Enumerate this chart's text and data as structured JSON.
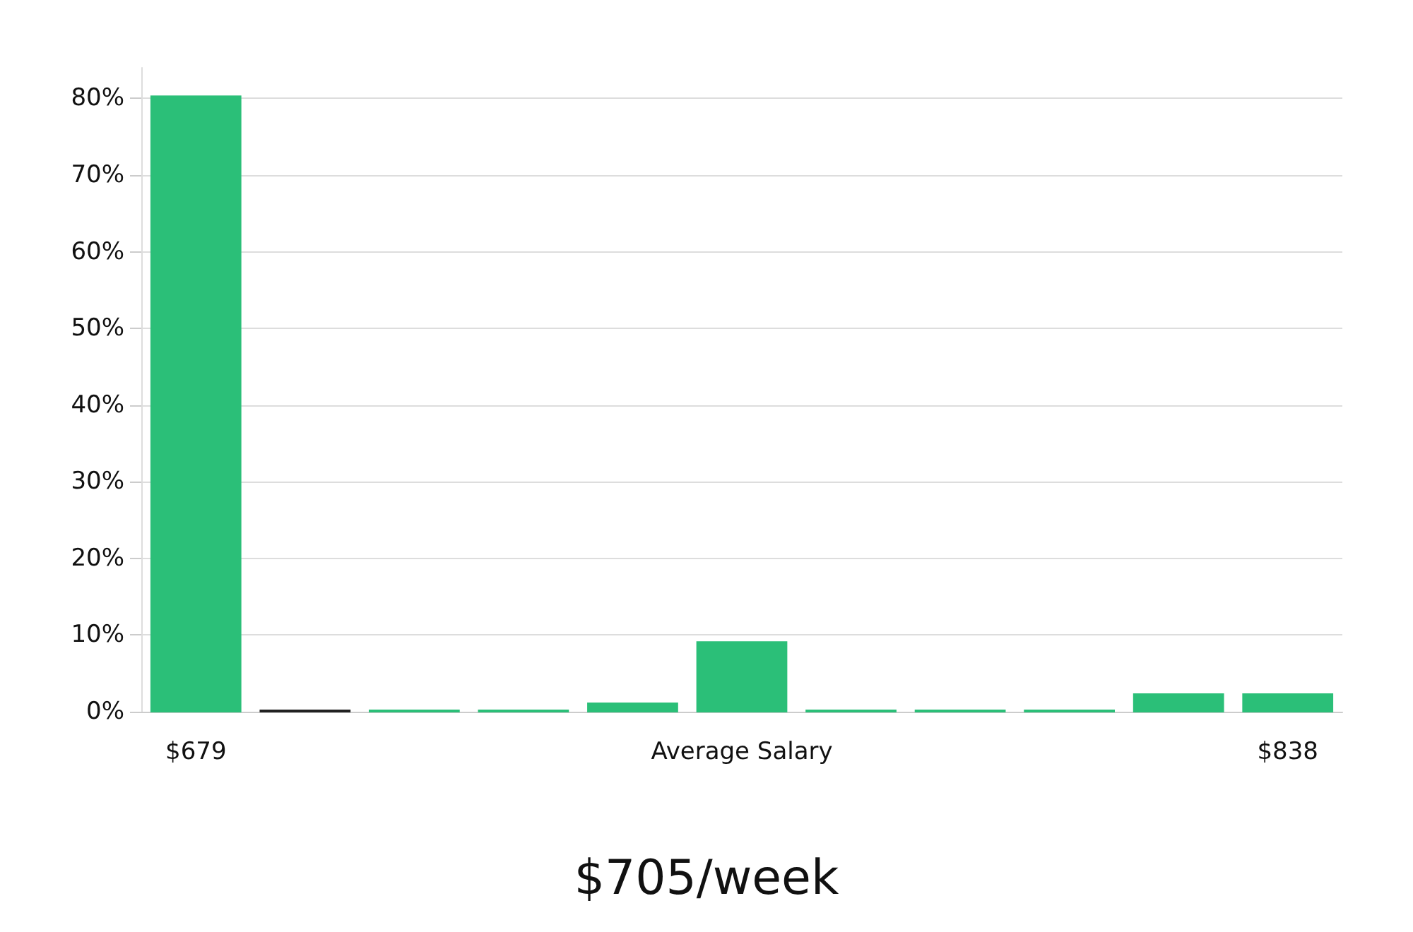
{
  "chart_data": {
    "type": "bar",
    "title": "$705/week",
    "categories": [
      "$679",
      null,
      null,
      null,
      null,
      "Average Salary",
      null,
      null,
      null,
      null,
      "$838"
    ],
    "values": [
      80.3,
      0,
      0,
      0,
      1.1,
      9.1,
      0,
      0,
      0,
      2.3,
      2.3
    ],
    "colors": [
      "#2bbf78",
      "#222222",
      "#2bbf78",
      "#2bbf78",
      "#2bbf78",
      "#2bbf78",
      "#2bbf78",
      "#2bbf78",
      "#2bbf78",
      "#2bbf78",
      "#2bbf78"
    ],
    "ylim": [
      0,
      84
    ],
    "yticks": [
      {
        "value": 0,
        "label": "0%"
      },
      {
        "value": 10,
        "label": "10%"
      },
      {
        "value": 20,
        "label": "20%"
      },
      {
        "value": 30,
        "label": "30%"
      },
      {
        "value": 40,
        "label": "40%"
      },
      {
        "value": 50,
        "label": "50%"
      },
      {
        "value": 60,
        "label": "60%"
      },
      {
        "value": 70,
        "label": "70%"
      },
      {
        "value": 80,
        "label": "80%"
      }
    ],
    "grid": "y"
  }
}
